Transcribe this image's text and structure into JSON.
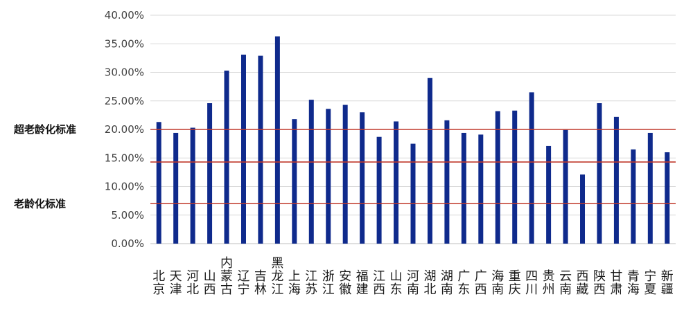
{
  "chart_data": {
    "type": "bar",
    "categories": [
      "北京",
      "天津",
      "河北",
      "山西",
      "内蒙古",
      "辽宁",
      "吉林",
      "黑龙江",
      "上海",
      "江苏",
      "浙江",
      "安徽",
      "福建",
      "江西",
      "山东",
      "河南",
      "湖北",
      "湖南",
      "广东",
      "广西",
      "海南",
      "重庆",
      "四川",
      "贵州",
      "云南",
      "西藏",
      "陕西",
      "甘肃",
      "青海",
      "宁夏",
      "新疆"
    ],
    "values": [
      21.3,
      19.4,
      20.3,
      24.6,
      30.3,
      33.1,
      32.9,
      36.3,
      21.8,
      25.2,
      23.6,
      24.3,
      23.0,
      18.7,
      21.4,
      17.5,
      29.0,
      21.6,
      19.4,
      19.1,
      23.2,
      23.3,
      26.5,
      17.1,
      19.9,
      12.1,
      24.6,
      22.2,
      16.5,
      19.4,
      16.0
    ],
    "yticks": [
      "0.00%",
      "5.00%",
      "10.00%",
      "15.00%",
      "20.00%",
      "25.00%",
      "30.00%",
      "35.00%",
      "40.00%"
    ],
    "ylim": [
      0,
      40
    ],
    "grid": true,
    "bar_color": "#0f2a8c",
    "reference_lines": [
      {
        "label": "超老龄化标准",
        "value": 20.0,
        "color": "#c0392b"
      },
      {
        "label": "老龄化标准",
        "value": 7.0,
        "color": "#c0392b"
      }
    ],
    "extra_line": {
      "value": 14.3,
      "color": "#c0392b"
    }
  }
}
